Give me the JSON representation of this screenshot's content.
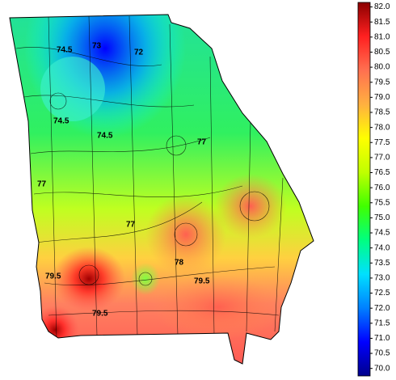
{
  "chart_data": {
    "type": "contour-map",
    "contour_labels": [
      "74.5",
      "73",
      "72",
      "74.5",
      "74.5",
      "77",
      "77",
      "77",
      "79.5",
      "78",
      "79.5",
      "79.5"
    ],
    "colormap": [
      "#00008b",
      "#0000ff",
      "#0080ff",
      "#00e0ff",
      "#00ff80",
      "#40ff00",
      "#c0ff00",
      "#ffff00",
      "#ffb040",
      "#ff7050",
      "#ff2020",
      "#8b0000"
    ],
    "ylim": [
      69.75,
      82.15
    ],
    "yticks": [
      {
        "value": 82,
        "label": "82.0"
      },
      {
        "value": 81.5,
        "label": "81.5"
      },
      {
        "value": 81,
        "label": "81.0"
      },
      {
        "value": 80.5,
        "label": "80.5"
      },
      {
        "value": 80,
        "label": "80.0"
      },
      {
        "value": 79.5,
        "label": "79.5"
      },
      {
        "value": 79,
        "label": "79.0"
      },
      {
        "value": 78.5,
        "label": "78.5"
      },
      {
        "value": 78,
        "label": "78.0"
      },
      {
        "value": 77.5,
        "label": "77.5"
      },
      {
        "value": 77,
        "label": "77.0"
      },
      {
        "value": 76.5,
        "label": "76.5"
      },
      {
        "value": 76,
        "label": "76.0"
      },
      {
        "value": 75.5,
        "label": "75.5"
      },
      {
        "value": 75,
        "label": "75.0"
      },
      {
        "value": 74.5,
        "label": "74.5"
      },
      {
        "value": 74,
        "label": "74.0"
      },
      {
        "value": 73.5,
        "label": "73.5"
      },
      {
        "value": 73,
        "label": "73.0"
      },
      {
        "value": 72.5,
        "label": "72.5"
      },
      {
        "value": 72,
        "label": "72.0"
      },
      {
        "value": 71.5,
        "label": "71.5"
      },
      {
        "value": 71,
        "label": "71.0"
      },
      {
        "value": 70.5,
        "label": "70.5"
      },
      {
        "value": 70,
        "label": "70.0"
      }
    ]
  }
}
